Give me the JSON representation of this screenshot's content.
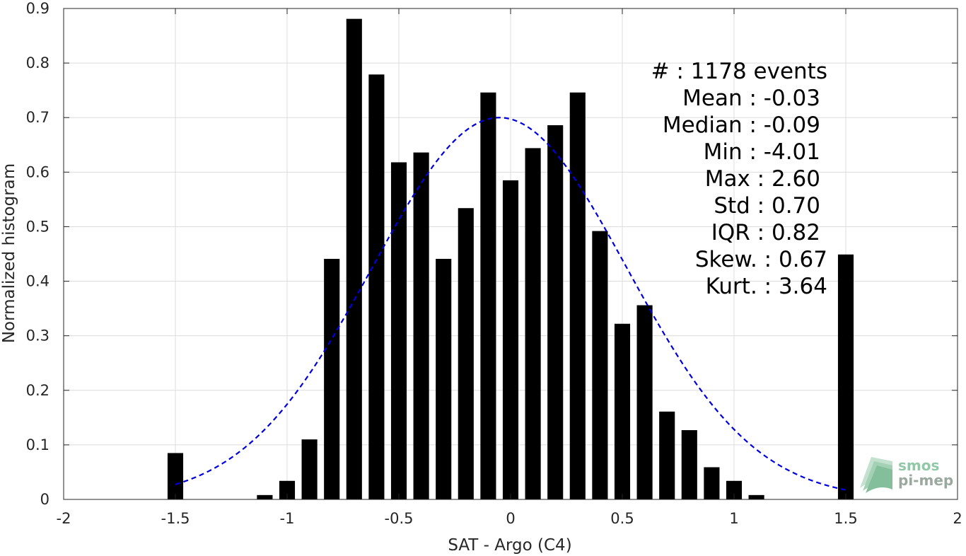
{
  "chart_data": {
    "type": "bar",
    "xlabel": "SAT - Argo (C4)",
    "ylabel": "Normalized histogram",
    "xlim": [
      -2,
      2
    ],
    "ylim": [
      0,
      0.9
    ],
    "xticks": [
      -2,
      -1.5,
      -1,
      -0.5,
      0,
      0.5,
      1,
      1.5,
      2
    ],
    "xtick_labels": [
      "-2",
      "-1.5",
      "-1",
      "-0.5",
      "0",
      "0.5",
      "1",
      "1.5",
      "2"
    ],
    "yticks": [
      0,
      0.1,
      0.2,
      0.3,
      0.4,
      0.5,
      0.6,
      0.7,
      0.8,
      0.9
    ],
    "ytick_labels": [
      "0",
      "0.1",
      "0.2",
      "0.3",
      "0.4",
      "0.5",
      "0.6",
      "0.7",
      "0.8",
      "0.9"
    ],
    "grid": true,
    "bar_color": "#000000",
    "bars": {
      "x": [
        -1.5,
        -1.1,
        -1.0,
        -0.9,
        -0.8,
        -0.7,
        -0.6,
        -0.5,
        -0.4,
        -0.3,
        -0.2,
        -0.1,
        0.0,
        0.1,
        0.2,
        0.3,
        0.4,
        0.5,
        0.6,
        0.7,
        0.8,
        0.9,
        1.0,
        1.1,
        1.5
      ],
      "values": [
        0.085,
        0.008,
        0.034,
        0.11,
        0.441,
        0.881,
        0.779,
        0.618,
        0.636,
        0.441,
        0.534,
        0.746,
        0.585,
        0.644,
        0.686,
        0.746,
        0.492,
        0.322,
        0.356,
        0.161,
        0.127,
        0.059,
        0.034,
        0.008,
        0.449
      ]
    },
    "fit": {
      "type": "gaussian",
      "style": "dashed",
      "color": "#0000dd",
      "mean": -0.05,
      "std": 0.57,
      "peak": 0.7,
      "x_range": [
        -1.5,
        1.5
      ]
    },
    "annotations": [
      "#  : 1178 events",
      "Mean : -0.03",
      "Median : -0.09",
      "Min : -4.01",
      "Max : 2.60",
      "Std : 0.70",
      "IQR : 0.82",
      "Skew. : 0.67",
      "Kurt. : 3.64"
    ]
  },
  "logo": {
    "line1": "smos",
    "line2": "pi-mep",
    "color": "#7fbf9a"
  }
}
